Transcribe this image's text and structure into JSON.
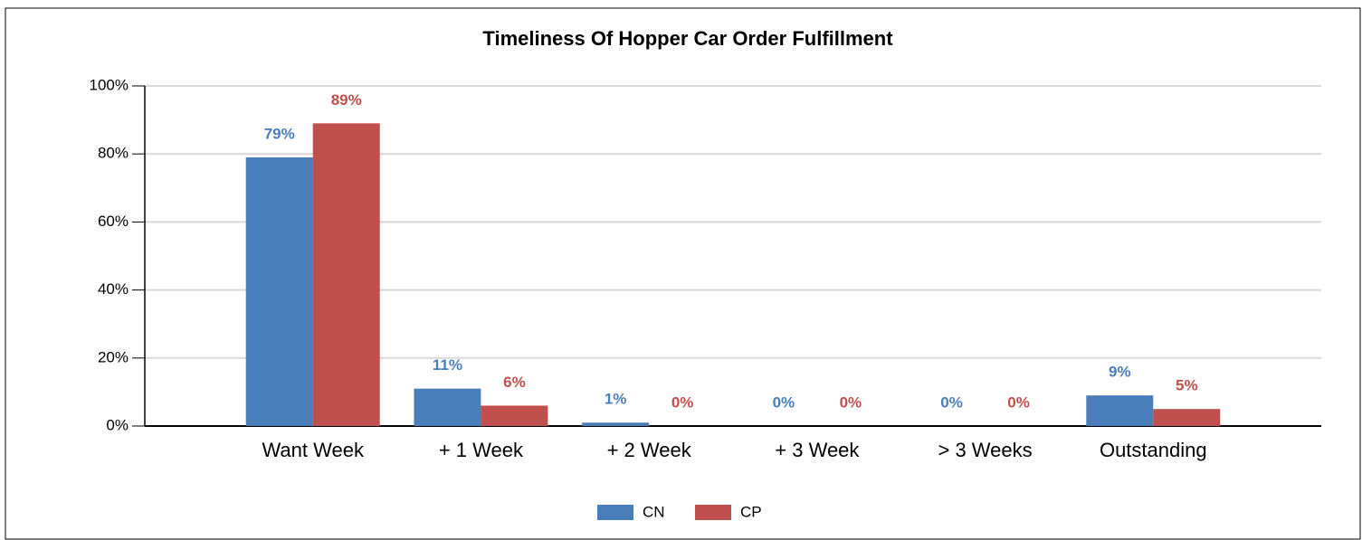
{
  "chart_data": {
    "type": "bar",
    "title": "Timeliness Of Hopper Car Order Fulfillment",
    "categories": [
      "Want Week",
      "+ 1 Week",
      "+ 2 Week",
      "+ 3 Week",
      "> 3 Weeks",
      "Outstanding"
    ],
    "series": [
      {
        "name": "CN",
        "color": "#4a7ebb",
        "values": [
          79,
          11,
          1,
          0,
          0,
          9
        ],
        "value_labels": [
          "79%",
          "11%",
          "1%",
          "0%",
          "0%",
          "9%"
        ]
      },
      {
        "name": "CP",
        "color": "#c0504d",
        "values": [
          89,
          6,
          0,
          0,
          0,
          5
        ],
        "value_labels": [
          "89%",
          "6%",
          "0%",
          "0%",
          "0%",
          "5%"
        ]
      }
    ],
    "ylim": [
      0,
      100
    ],
    "yticks": [
      {
        "value": 0,
        "label": "0%"
      },
      {
        "value": 20,
        "label": "20%"
      },
      {
        "value": 40,
        "label": "40%"
      },
      {
        "value": 60,
        "label": "60%"
      },
      {
        "value": 80,
        "label": "80%"
      },
      {
        "value": 100,
        "label": "100%"
      }
    ],
    "grid": true,
    "legend": "bottom"
  }
}
